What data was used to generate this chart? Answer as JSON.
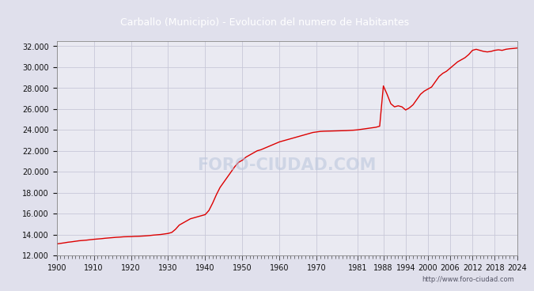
{
  "title": "Carballo (Municipio) - Evolucion del numero de Habitantes",
  "title_bg_color": "#4f86d4",
  "title_text_color": "#ffffff",
  "bg_color": "#e0e0ec",
  "plot_bg_color": "#eaeaf2",
  "line_color": "#dd0000",
  "line_width": 1.0,
  "footer_text": "http://www.foro-ciudad.com",
  "watermark": "FORO-CIUDAD.COM",
  "xlim": [
    1900,
    2024
  ],
  "ylim": [
    12000,
    32500
  ],
  "ytick_step": 2000,
  "xticks": [
    1900,
    1910,
    1920,
    1930,
    1940,
    1950,
    1960,
    1970,
    1981,
    1988,
    1994,
    2000,
    2006,
    2012,
    2018,
    2024
  ],
  "years": [
    1900,
    1901,
    1902,
    1903,
    1904,
    1905,
    1906,
    1907,
    1908,
    1909,
    1910,
    1911,
    1912,
    1913,
    1914,
    1915,
    1916,
    1917,
    1918,
    1919,
    1920,
    1921,
    1922,
    1923,
    1924,
    1925,
    1926,
    1927,
    1928,
    1929,
    1930,
    1931,
    1932,
    1933,
    1934,
    1935,
    1936,
    1937,
    1938,
    1939,
    1940,
    1941,
    1942,
    1943,
    1944,
    1945,
    1946,
    1947,
    1948,
    1949,
    1950,
    1951,
    1952,
    1953,
    1954,
    1955,
    1956,
    1957,
    1958,
    1959,
    1960,
    1961,
    1962,
    1963,
    1964,
    1965,
    1966,
    1967,
    1968,
    1969,
    1970,
    1971,
    1972,
    1973,
    1974,
    1975,
    1976,
    1977,
    1978,
    1979,
    1980,
    1981,
    1982,
    1983,
    1984,
    1985,
    1986,
    1987,
    1988,
    1989,
    1990,
    1991,
    1992,
    1993,
    1994,
    1995,
    1996,
    1997,
    1998,
    1999,
    2000,
    2001,
    2002,
    2003,
    2004,
    2005,
    2006,
    2007,
    2008,
    2009,
    2010,
    2011,
    2012,
    2013,
    2014,
    2015,
    2016,
    2017,
    2018,
    2019,
    2020,
    2021,
    2022,
    2023,
    2024
  ],
  "population": [
    13100,
    13150,
    13200,
    13260,
    13300,
    13350,
    13400,
    13430,
    13460,
    13500,
    13540,
    13570,
    13600,
    13640,
    13670,
    13700,
    13730,
    13750,
    13780,
    13790,
    13800,
    13820,
    13830,
    13850,
    13870,
    13900,
    13940,
    13970,
    14000,
    14050,
    14100,
    14200,
    14500,
    14900,
    15100,
    15300,
    15500,
    15600,
    15700,
    15800,
    15900,
    16300,
    17000,
    17800,
    18500,
    19000,
    19500,
    20000,
    20500,
    20900,
    21100,
    21400,
    21600,
    21800,
    22000,
    22100,
    22250,
    22400,
    22550,
    22700,
    22850,
    22950,
    23050,
    23150,
    23250,
    23350,
    23450,
    23550,
    23650,
    23750,
    23800,
    23850,
    23870,
    23880,
    23890,
    23900,
    23910,
    23920,
    23930,
    23950,
    23970,
    24000,
    24050,
    24100,
    24150,
    24200,
    24250,
    24350,
    28200,
    27400,
    26500,
    26200,
    26300,
    26200,
    25900,
    26100,
    26400,
    26900,
    27400,
    27700,
    27900,
    28100,
    28600,
    29100,
    29400,
    29600,
    29900,
    30200,
    30500,
    30700,
    30900,
    31200,
    31600,
    31700,
    31600,
    31500,
    31450,
    31500,
    31600,
    31650,
    31600,
    31700,
    31750,
    31780,
    31820
  ]
}
